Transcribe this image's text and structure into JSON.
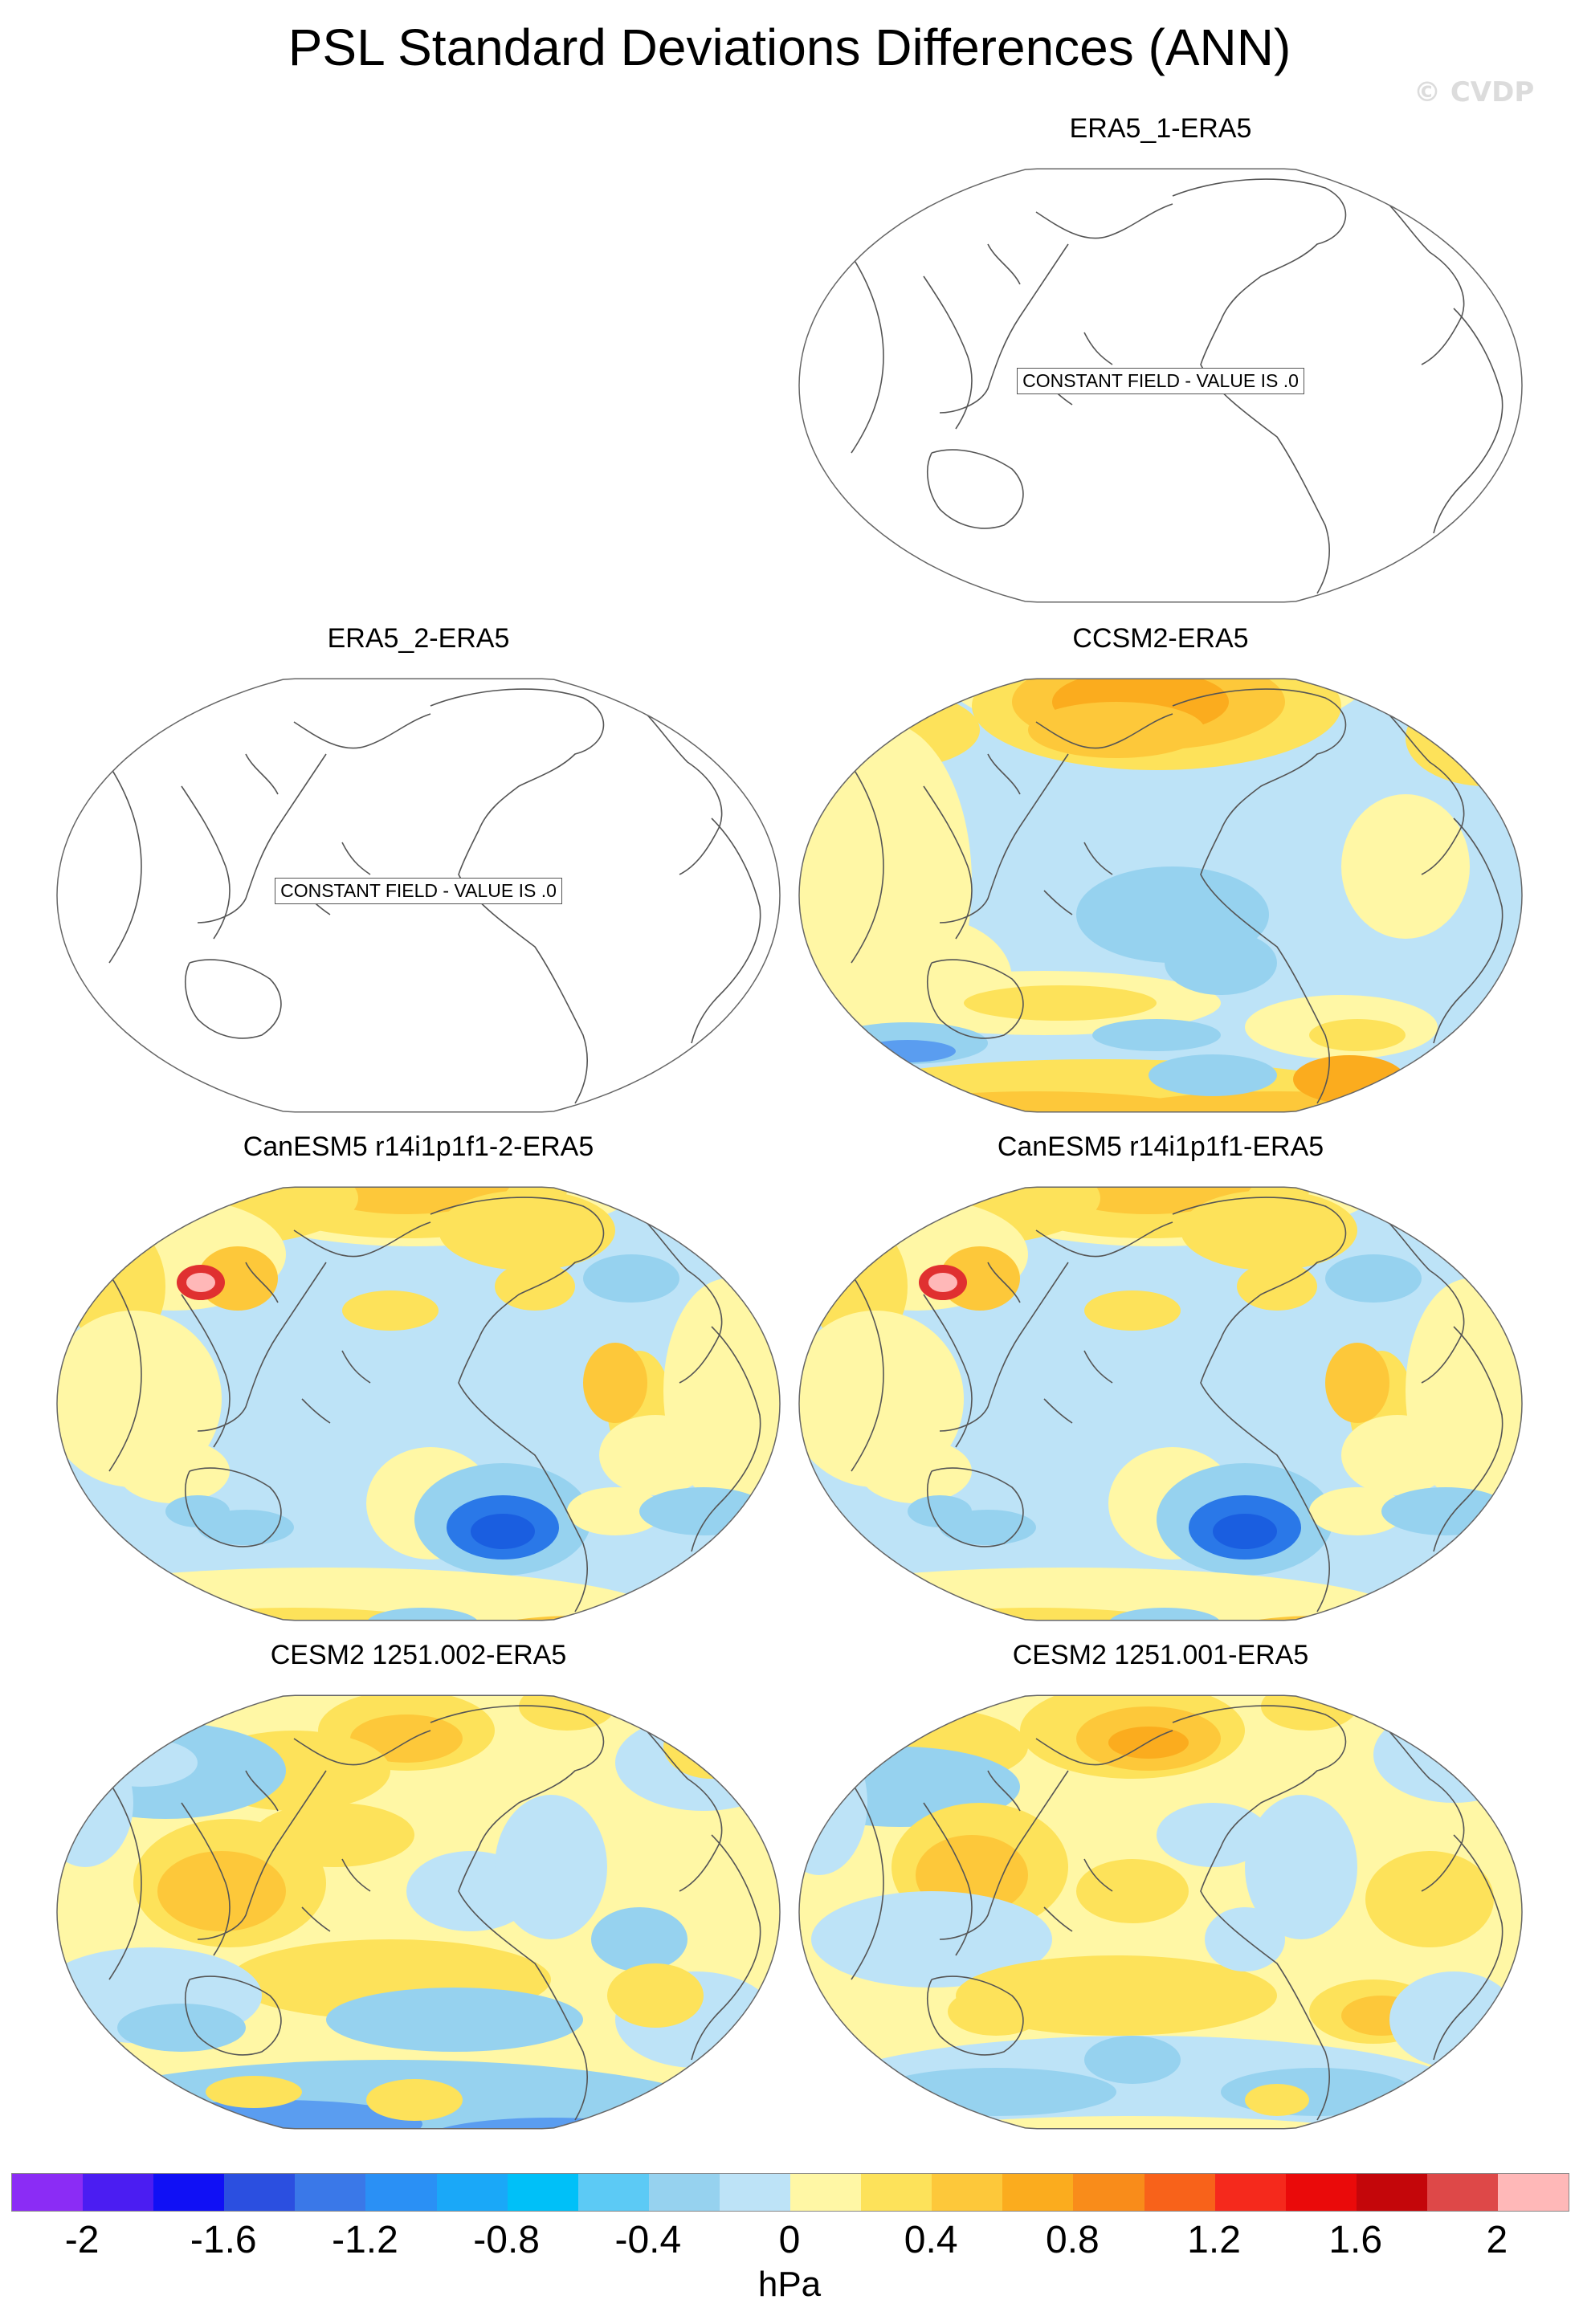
{
  "title": "PSL Standard Deviations Differences (ANN)",
  "watermark": "© CVDP",
  "constant_label": "CONSTANT FIELD - VALUE IS .0",
  "panels": [
    {
      "title": "ERA5_1-ERA5",
      "style": "constant"
    },
    {
      "title": "ERA5_2-ERA5",
      "style": "constant"
    },
    {
      "title": "CCSM2-ERA5",
      "style": "ccsm"
    },
    {
      "title": "CanESM5 r14i1p1f1-2-ERA5",
      "style": "canesm"
    },
    {
      "title": "CanESM5 r14i1p1f1-ERA5",
      "style": "canesm"
    },
    {
      "title": "CESM2 1251.002-ERA5",
      "style": "cesm_a"
    },
    {
      "title": "CESM2 1251.001-ERA5",
      "style": "cesm_b"
    }
  ],
  "colorbar": {
    "units": "hPa",
    "tick_labels": [
      "-2",
      "-1.6",
      "-1.2",
      "-0.8",
      "-0.4",
      "0",
      "0.4",
      "0.8",
      "1.2",
      "1.6",
      "2"
    ],
    "colors": [
      "#8b2cf5",
      "#4b1df2",
      "#1010f5",
      "#2b4fe0",
      "#3a78e8",
      "#2a90f5",
      "#1aa8f8",
      "#00c0f8",
      "#5ccaf5",
      "#96d2ef",
      "#bde3f7",
      "#fff7a5",
      "#fde25a",
      "#fdc83a",
      "#fbac1e",
      "#f98c1a",
      "#f8621a",
      "#f5291c",
      "#ea0a0a",
      "#c4060a",
      "#de4848",
      "#ffb8b8"
    ]
  }
}
